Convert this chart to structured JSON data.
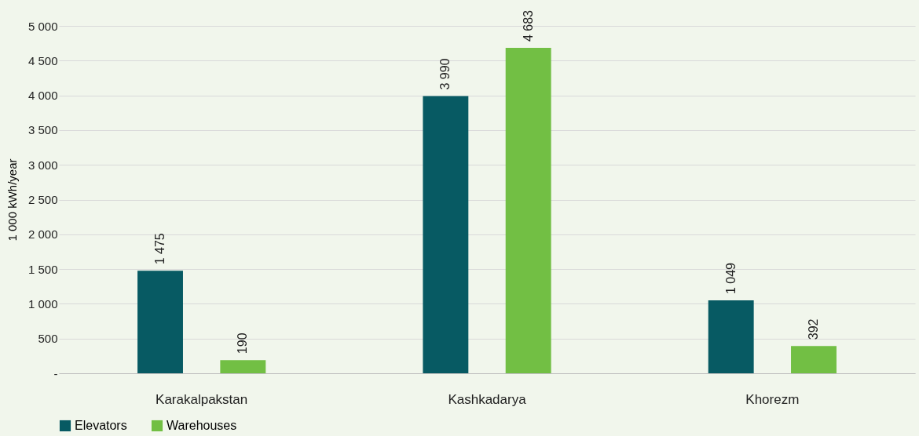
{
  "chart_data": {
    "type": "bar",
    "ylabel": "1 000 kWh/year",
    "categories": [
      "Karakalpakstan",
      "Kashkadarya",
      "Khorezm"
    ],
    "series": [
      {
        "name": "Elevators",
        "color": "#075a63",
        "values": [
          1475,
          3990,
          1049
        ],
        "value_labels": [
          "1 475",
          "3 990",
          "1 049"
        ]
      },
      {
        "name": "Warehouses",
        "color": "#72bf44",
        "values": [
          190,
          4683,
          392
        ],
        "value_labels": [
          "190",
          "4 683",
          "392"
        ]
      }
    ],
    "ylim": [
      0,
      5000
    ],
    "yticks": [
      {
        "value": 0,
        "label": "-"
      },
      500,
      {
        "value": 1000,
        "label": "1 000"
      },
      {
        "value": 1500,
        "label": "1 500"
      },
      {
        "value": 2000,
        "label": "2 000"
      },
      {
        "value": 2500,
        "label": "2 500"
      },
      {
        "value": 3000,
        "label": "3 000"
      },
      {
        "value": 3500,
        "label": "3 500"
      },
      {
        "value": 4000,
        "label": "4 000"
      },
      {
        "value": 4500,
        "label": "4 500"
      },
      {
        "value": 5000,
        "label": "5 000"
      }
    ],
    "grid": "y",
    "legend": "bottom"
  }
}
